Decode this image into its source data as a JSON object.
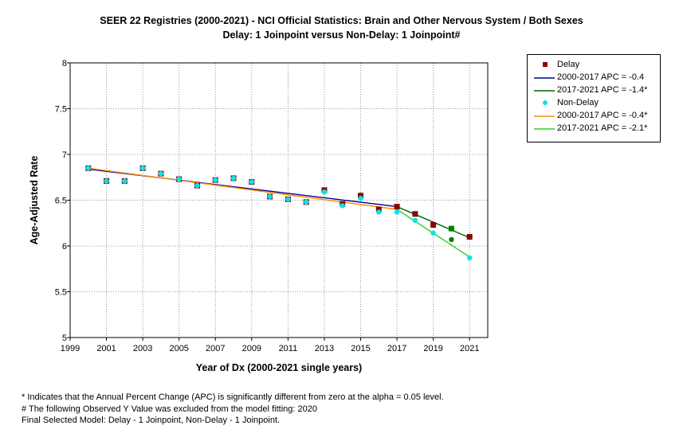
{
  "title_line1": "SEER 22 Registries (2000-2021) - NCI Official Statistics: Brain and Other Nervous System / Both Sexes",
  "title_line2": "Delay: 1 Joinpoint  versus  Non-Delay: 1 Joinpoint#",
  "legend": [
    {
      "label": "Delay",
      "kind": "square",
      "color": "#8b0000"
    },
    {
      "label": "2000-2017 APC  = -0.4",
      "kind": "line",
      "color": "#00008b"
    },
    {
      "label": "2017-2021 APC  = -1.4*",
      "kind": "line",
      "color": "#006400"
    },
    {
      "label": "Non-Delay",
      "kind": "dot",
      "color": "#00e5ee"
    },
    {
      "label": "2000-2017 APC  = -0.4*",
      "kind": "line",
      "color": "#ff8c00"
    },
    {
      "label": "2017-2021 APC  = -2.1*",
      "kind": "line",
      "color": "#32cd32"
    }
  ],
  "footnotes": [
    "* Indicates that the Annual Percent Change (APC) is significantly different from zero at the alpha = 0.05 level.",
    " # The following Observed Y Value was excluded from the model fitting: 2020",
    "Final Selected Model: Delay - 1 Joinpoint, Non-Delay - 1 Joinpoint."
  ],
  "chart_data": {
    "type": "scatter",
    "title": "SEER 22 Registries (2000-2021) - NCI Official Statistics: Brain and Other Nervous System / Both Sexes",
    "subtitle": "Delay: 1 Joinpoint  versus  Non-Delay: 1 Joinpoint#",
    "xlabel": "Year of Dx (2000-2021 single years)",
    "ylabel": "Age-Adjusted Rate",
    "xlim": [
      1999,
      2022
    ],
    "ylim": [
      5,
      8
    ],
    "x_ticks": [
      1999,
      2001,
      2003,
      2005,
      2007,
      2009,
      2011,
      2013,
      2015,
      2017,
      2019,
      2021
    ],
    "y_ticks": [
      5,
      5.5,
      6,
      6.5,
      7,
      7.5,
      8
    ],
    "grid": true,
    "legend_position": "right",
    "x": [
      2000,
      2001,
      2002,
      2003,
      2004,
      2005,
      2006,
      2007,
      2008,
      2009,
      2010,
      2011,
      2012,
      2013,
      2014,
      2015,
      2016,
      2017,
      2018,
      2019,
      2020,
      2021
    ],
    "series": [
      {
        "name": "Delay",
        "marker": "square",
        "color": "#8b0000",
        "values": [
          6.85,
          6.71,
          6.71,
          6.85,
          6.79,
          6.73,
          6.66,
          6.72,
          6.74,
          6.7,
          6.54,
          6.51,
          6.48,
          6.61,
          6.46,
          6.55,
          6.4,
          6.43,
          6.35,
          6.23,
          6.19,
          6.1
        ]
      },
      {
        "name": "Non-Delay",
        "marker": "circle",
        "color": "#00e5ee",
        "values": [
          6.85,
          6.71,
          6.71,
          6.85,
          6.79,
          6.73,
          6.66,
          6.72,
          6.74,
          6.7,
          6.54,
          6.51,
          6.48,
          6.59,
          6.44,
          6.52,
          6.37,
          6.37,
          6.28,
          6.14,
          6.07,
          5.87
        ]
      }
    ],
    "excluded_points": [
      {
        "series": "Delay",
        "x": 2020,
        "y": 6.19,
        "color": "#008000",
        "marker": "square"
      },
      {
        "series": "Non-Delay",
        "x": 2020,
        "y": 6.07,
        "color": "#008000",
        "marker": "circle"
      }
    ],
    "fit_lines": [
      {
        "name": "2000-2017 APC  = -0.4",
        "color": "#00008b",
        "points": [
          [
            2000,
            6.84
          ],
          [
            2017,
            6.43
          ]
        ]
      },
      {
        "name": "2017-2021 APC  = -1.4*",
        "color": "#006400",
        "points": [
          [
            2017,
            6.43
          ],
          [
            2021,
            6.09
          ]
        ]
      },
      {
        "name": "2000-2017 APC  = -0.4*",
        "color": "#ff8c00",
        "points": [
          [
            2000,
            6.85
          ],
          [
            2017,
            6.4
          ]
        ]
      },
      {
        "name": "2017-2021 APC  = -2.1*",
        "color": "#32cd32",
        "points": [
          [
            2017,
            6.4
          ],
          [
            2021,
            5.88
          ]
        ]
      }
    ]
  }
}
